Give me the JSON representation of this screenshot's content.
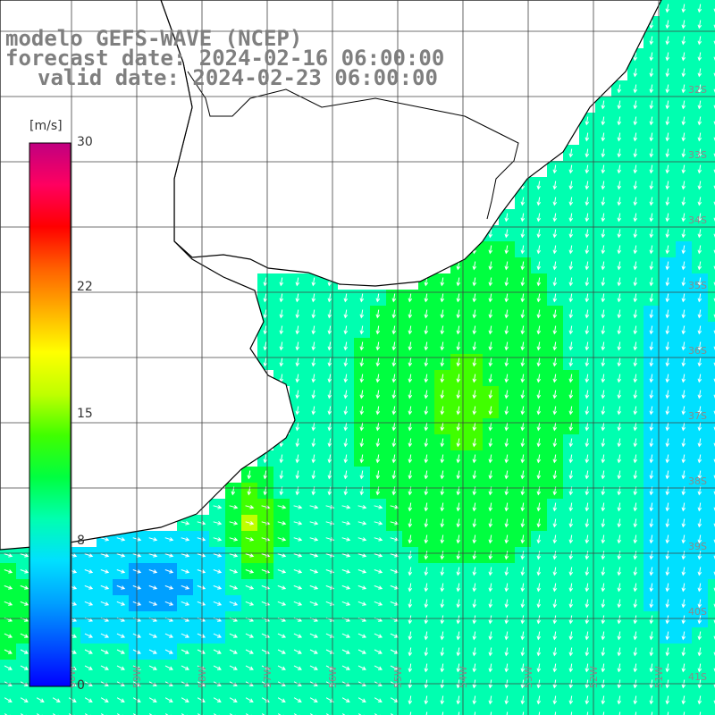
{
  "title": {
    "line1": "modelo GEFS-WAVE (NCEP)",
    "line2": "forecast date: 2024-02-16 06:00:00",
    "line3": "valid date: 2024-02-23 06:00:00"
  },
  "colorbar": {
    "unit": "[m/s]",
    "min": 0,
    "max": 30,
    "ticks": [
      {
        "value": 30,
        "label": "30"
      },
      {
        "value": 22,
        "label": "22"
      },
      {
        "value": 15,
        "label": "15"
      },
      {
        "value": 8,
        "label": "8"
      },
      {
        "value": 0,
        "label": "0"
      }
    ],
    "colors": [
      "#0000ff",
      "#0050ff",
      "#00a0ff",
      "#00e0ff",
      "#00ffb0",
      "#00ff40",
      "#40ff00",
      "#c0ff00",
      "#ffff00",
      "#ffb000",
      "#ff6000",
      "#ff0000",
      "#ff0060",
      "#c00080"
    ]
  },
  "map": {
    "field": "wind speed",
    "lat_labels": [
      "32S",
      "33S",
      "34S",
      "35S",
      "36S",
      "37S",
      "38S",
      "39S",
      "40S",
      "41S"
    ],
    "lon_labels": [
      "60W",
      "59W",
      "58W",
      "57W",
      "56W",
      "55W",
      "54W",
      "53W",
      "52W",
      "51W"
    ],
    "land_color": "#ffffff",
    "coast_color": "#000000",
    "grid_color": "#404040",
    "arrow_color": "#ffffff"
  }
}
